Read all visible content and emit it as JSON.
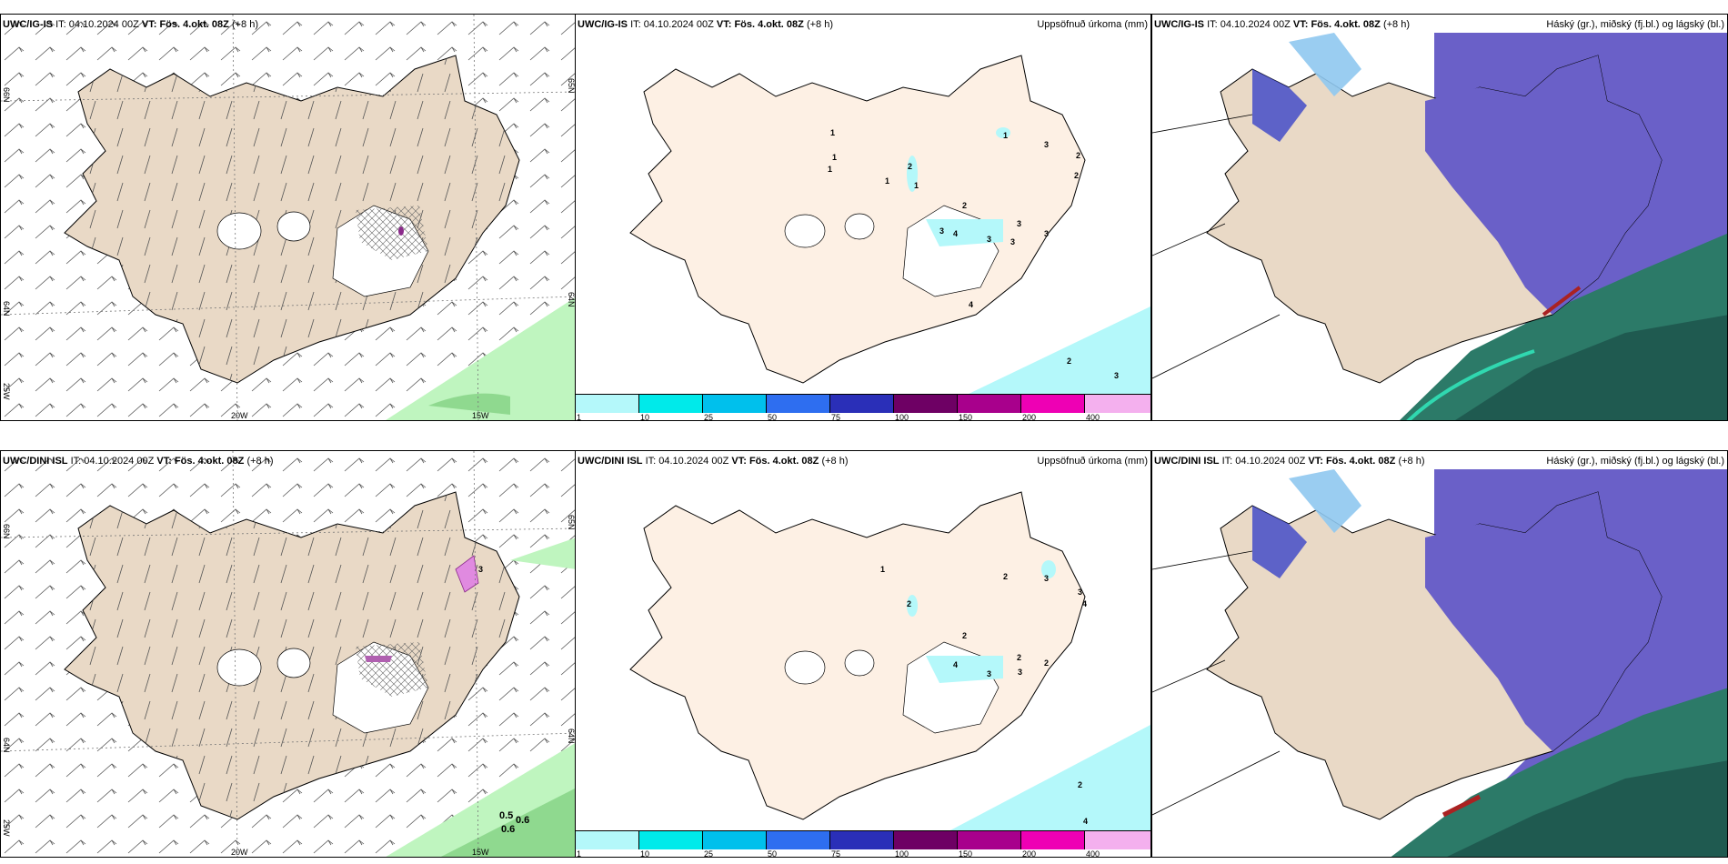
{
  "panels": [
    {
      "id": "p1",
      "model": "UWC/IG-IS",
      "it_label": "IT:",
      "it_value": "04.10.2024 00Z",
      "vt_label": "VT:",
      "vt_value": "Fös. 4.okt. 08Z",
      "lead": "(+8 h)",
      "right_title": "",
      "lon_labels": [
        "20W",
        "15W"
      ],
      "lat_labels_left": [
        "66N",
        "64N",
        "25W"
      ],
      "lat_labels_right": [
        "65N",
        "64N"
      ]
    },
    {
      "id": "p2",
      "model": "UWC/IG-IS",
      "it_label": "IT:",
      "it_value": "04.10.2024 00Z",
      "vt_label": "VT:",
      "vt_value": "Fös. 4.okt. 08Z",
      "lead": "(+8 h)",
      "right_title": "Uppsöfnuð úrkoma (mm)",
      "values": [
        "1",
        "1",
        "1",
        "2",
        "1",
        "1",
        "1",
        "3",
        "2",
        "2",
        "2",
        "3",
        "4",
        "3",
        "3",
        "3",
        "3",
        "4",
        "2",
        "3"
      ]
    },
    {
      "id": "p3",
      "model": "UWC/IG-IS",
      "it_label": "IT:",
      "it_value": "04.10.2024 00Z",
      "vt_label": "VT:",
      "vt_value": "Fös. 4.okt. 08Z",
      "lead": "(+8 h)",
      "right_title": "Háský (gr.), miðský (fj.bl.) og lágský (bl.)"
    },
    {
      "id": "p4",
      "model": "UWC/DINI ISL",
      "it_label": "IT:",
      "it_value": "04.10.2024 00Z",
      "vt_label": "VT:",
      "vt_value": "Fös. 4.okt. 08Z",
      "lead": "(+8 h)",
      "right_title": "",
      "lon_labels": [
        "20W",
        "15W"
      ],
      "lat_labels_left": [
        "66N",
        "64N",
        "25W"
      ],
      "lat_labels_right": [
        "65N",
        "64N"
      ],
      "values": [
        "3",
        "0.5",
        "0.6",
        "0.6"
      ]
    },
    {
      "id": "p5",
      "model": "UWC/DINI ISL",
      "it_label": "IT:",
      "it_value": "04.10.2024 00Z",
      "vt_label": "VT:",
      "vt_value": "Fös. 4.okt. 08Z",
      "lead": "(+8 h)",
      "right_title": "Uppsöfnuð úrkoma (mm)",
      "values": [
        "1",
        "2",
        "2",
        "3",
        "3",
        "4",
        "2",
        "4",
        "3",
        "3",
        "2",
        "2",
        "2",
        "4"
      ]
    },
    {
      "id": "p6",
      "model": "UWC/DINI ISL",
      "it_label": "IT:",
      "it_value": "04.10.2024 00Z",
      "vt_label": "VT:",
      "vt_value": "Fös. 4.okt. 08Z",
      "lead": "(+8 h)",
      "right_title": "Háský (gr.), miðský (fj.bl.) og lágský (bl.)"
    }
  ],
  "colorbar": {
    "ticks": [
      "1",
      "10",
      "25",
      "50",
      "75",
      "100",
      "150",
      "200",
      "400"
    ],
    "colors": [
      "#b4f8fa",
      "#00eaea",
      "#00c0ec",
      "#2e6ef0",
      "#2a2fb8",
      "#6e0064",
      "#a8008c",
      "#ee00b4",
      "#f4b0ee"
    ]
  },
  "colors": {
    "land": "#e9d9c6",
    "land_light": "#fdf0e4",
    "wind_barb": "#444444",
    "precip_green": "#bff5bf",
    "cloud_high": "#6a60c8",
    "cloud_low": "#1f6a5a"
  }
}
